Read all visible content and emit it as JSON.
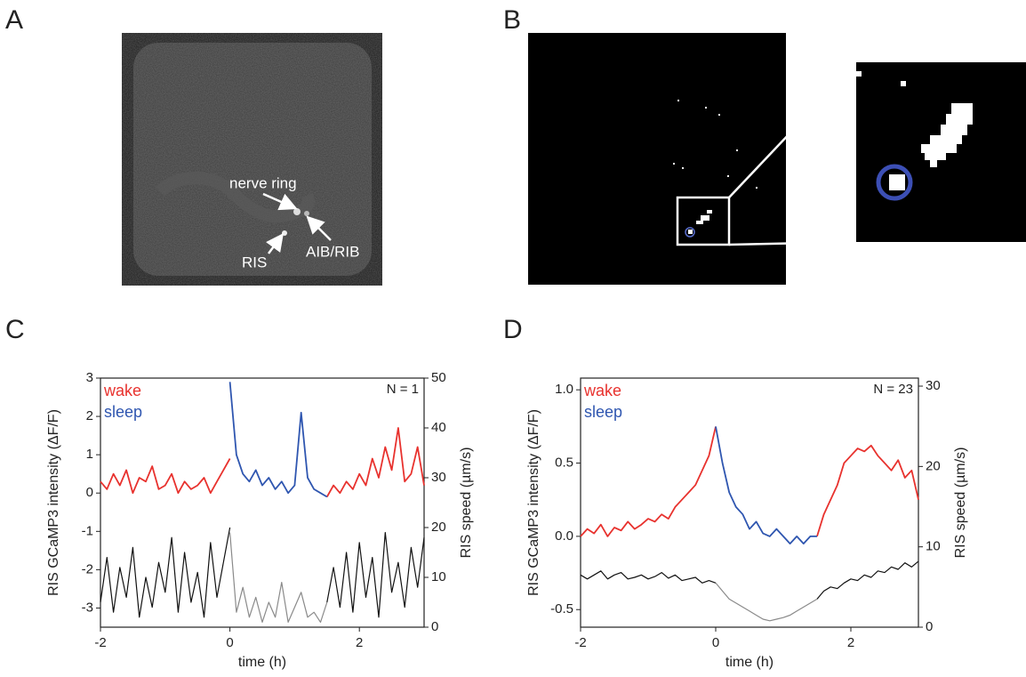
{
  "panels": [
    {
      "label": "A",
      "annotations": [
        "nerve ring",
        "RIS",
        "AIB/RIB"
      ]
    },
    {
      "label": "B"
    },
    {
      "label": "C"
    },
    {
      "label": "D"
    }
  ],
  "chart_data": [
    {
      "type": "line",
      "xlabel": "time (h)",
      "ylabel": "RIS GCaMP3 intensity (ΔF/F)",
      "y2label": "RIS speed (µm/s)",
      "annotation": "N = 1",
      "x": [
        -2,
        -1.9,
        -1.8,
        -1.7,
        -1.6,
        -1.5,
        -1.4,
        -1.3,
        -1.2,
        -1.1,
        -1,
        -0.9,
        -0.8,
        -0.7,
        -0.6,
        -0.5,
        -0.4,
        -0.3,
        -0.2,
        -0.1,
        0,
        0.1,
        0.2,
        0.3,
        0.4,
        0.5,
        0.6,
        0.7,
        0.8,
        0.9,
        1,
        1.1,
        1.2,
        1.3,
        1.4,
        1.5,
        1.6,
        1.7,
        1.8,
        1.9,
        2,
        2.1,
        2.2,
        2.3,
        2.4,
        2.5,
        2.6,
        2.7,
        2.8,
        2.9,
        3
      ],
      "xlim": [
        -2,
        3
      ],
      "xticks": [
        -2,
        0,
        2
      ],
      "ylim": [
        -3.5,
        3
      ],
      "yticks": [
        3,
        2,
        1,
        0,
        -1,
        -2,
        -3
      ],
      "y2lim": [
        0,
        50
      ],
      "y2ticks": [
        50,
        40,
        30,
        20,
        10,
        0
      ],
      "series": [
        {
          "color": "#111111",
          "axis": "y2",
          "values": [
            5,
            14,
            3,
            12,
            6,
            16,
            2,
            10,
            4,
            13,
            7,
            18,
            3,
            15,
            5,
            11,
            2,
            17,
            6,
            13,
            20,
            null,
            null,
            null,
            null,
            null,
            null,
            null,
            null,
            null,
            null,
            null,
            null,
            null,
            null,
            5,
            12,
            4,
            15,
            3,
            17,
            6,
            14,
            2,
            19,
            7,
            13,
            4,
            16,
            8,
            18
          ]
        },
        {
          "color": "#8a8a8a",
          "axis": "y2",
          "values": [
            null,
            null,
            null,
            null,
            null,
            null,
            null,
            null,
            null,
            null,
            null,
            null,
            null,
            null,
            null,
            null,
            null,
            null,
            null,
            null,
            19,
            3,
            8,
            2,
            6,
            1,
            5,
            2,
            9,
            1,
            4,
            7,
            2,
            3,
            1,
            5,
            null,
            null,
            null,
            null,
            null,
            null,
            null,
            null,
            null,
            null,
            null,
            null,
            null,
            null,
            null
          ]
        },
        {
          "name": "wake",
          "color": "#e8322e",
          "values": [
            0.3,
            0.1,
            0.5,
            0.2,
            0.6,
            0.0,
            0.4,
            0.3,
            0.7,
            0.1,
            0.2,
            0.5,
            0.0,
            0.3,
            0.1,
            0.2,
            0.4,
            0.0,
            0.3,
            0.6,
            0.9,
            null,
            null,
            null,
            null,
            null,
            null,
            null,
            null,
            null,
            null,
            null,
            null,
            null,
            null,
            -0.1,
            0.2,
            0.0,
            0.3,
            0.1,
            0.5,
            0.2,
            0.9,
            0.4,
            1.2,
            0.6,
            1.7,
            0.3,
            0.5,
            1.2,
            0.2
          ]
        },
        {
          "name": "sleep",
          "color": "#2f56b0",
          "values": [
            null,
            null,
            null,
            null,
            null,
            null,
            null,
            null,
            null,
            null,
            null,
            null,
            null,
            null,
            null,
            null,
            null,
            null,
            null,
            null,
            2.9,
            1.0,
            0.5,
            0.3,
            0.6,
            0.2,
            0.4,
            0.1,
            0.3,
            0.0,
            0.2,
            2.1,
            0.4,
            0.1,
            0.0,
            -0.1,
            null,
            null,
            null,
            null,
            null,
            null,
            null,
            null,
            null,
            null,
            null,
            null,
            null,
            null,
            null
          ]
        }
      ]
    },
    {
      "type": "line",
      "xlabel": "time (h)",
      "ylabel": "RIS GCaMP3 intensity (ΔF/F)",
      "y2label": "RIS speed (µm/s)",
      "annotation": "N = 23",
      "x": [
        -2,
        -1.9,
        -1.8,
        -1.7,
        -1.6,
        -1.5,
        -1.4,
        -1.3,
        -1.2,
        -1.1,
        -1,
        -0.9,
        -0.8,
        -0.7,
        -0.6,
        -0.5,
        -0.4,
        -0.3,
        -0.2,
        -0.1,
        0,
        0.1,
        0.2,
        0.3,
        0.4,
        0.5,
        0.6,
        0.7,
        0.8,
        0.9,
        1,
        1.1,
        1.2,
        1.3,
        1.4,
        1.5,
        1.6,
        1.7,
        1.8,
        1.9,
        2,
        2.1,
        2.2,
        2.3,
        2.4,
        2.5,
        2.6,
        2.7,
        2.8,
        2.9,
        3
      ],
      "xlim": [
        -2,
        3
      ],
      "xticks": [
        -2,
        0,
        2
      ],
      "ylim": [
        -0.62,
        1.08
      ],
      "yticks": [
        {
          "value": 1,
          "label": "1.0"
        },
        0.5,
        {
          "value": 0,
          "label": "0.0"
        },
        -0.5
      ],
      "y2lim": [
        0,
        31
      ],
      "y2ticks": [
        30,
        20,
        10,
        0
      ],
      "series": [
        {
          "color": "#111111",
          "axis": "y2",
          "values": [
            6.5,
            6,
            6.5,
            7,
            6,
            6.5,
            6.8,
            6,
            6.2,
            6.5,
            6,
            6.3,
            6.8,
            6.1,
            6.5,
            5.8,
            6,
            6.2,
            5.5,
            5.8,
            5.5,
            null,
            null,
            null,
            null,
            null,
            null,
            null,
            null,
            null,
            null,
            null,
            null,
            null,
            null,
            3.5,
            4.5,
            5,
            4.8,
            5.5,
            6,
            5.8,
            6.5,
            6.2,
            7,
            6.8,
            7.5,
            7.2,
            8,
            7.5,
            8.2
          ]
        },
        {
          "color": "#8a8a8a",
          "axis": "y2",
          "values": [
            null,
            null,
            null,
            null,
            null,
            null,
            null,
            null,
            null,
            null,
            null,
            null,
            null,
            null,
            null,
            null,
            null,
            null,
            null,
            null,
            5.5,
            4.5,
            3.5,
            3,
            2.5,
            2,
            1.5,
            1,
            0.8,
            1,
            1.2,
            1.5,
            2,
            2.5,
            3,
            3.5,
            null,
            null,
            null,
            null,
            null,
            null,
            null,
            null,
            null,
            null,
            null,
            null,
            null,
            null,
            null
          ]
        },
        {
          "name": "wake",
          "color": "#e8322e",
          "values": [
            0.0,
            0.05,
            0.02,
            0.08,
            0.0,
            0.06,
            0.04,
            0.1,
            0.05,
            0.08,
            0.12,
            0.1,
            0.15,
            0.12,
            0.2,
            0.25,
            0.3,
            0.35,
            0.45,
            0.55,
            0.75,
            null,
            null,
            null,
            null,
            null,
            null,
            null,
            null,
            null,
            null,
            null,
            null,
            null,
            null,
            0.0,
            0.15,
            0.25,
            0.35,
            0.5,
            0.55,
            0.6,
            0.58,
            0.62,
            0.55,
            0.5,
            0.45,
            0.52,
            0.4,
            0.45,
            0.25
          ]
        },
        {
          "name": "sleep",
          "color": "#2f56b0",
          "values": [
            null,
            null,
            null,
            null,
            null,
            null,
            null,
            null,
            null,
            null,
            null,
            null,
            null,
            null,
            null,
            null,
            null,
            null,
            null,
            null,
            0.75,
            0.5,
            0.3,
            0.2,
            0.15,
            0.05,
            0.1,
            0.02,
            0.0,
            0.05,
            0.0,
            -0.05,
            0.0,
            -0.05,
            0.0,
            0.0,
            null,
            null,
            null,
            null,
            null,
            null,
            null,
            null,
            null,
            null,
            null,
            null,
            null,
            null,
            null
          ]
        }
      ]
    }
  ]
}
